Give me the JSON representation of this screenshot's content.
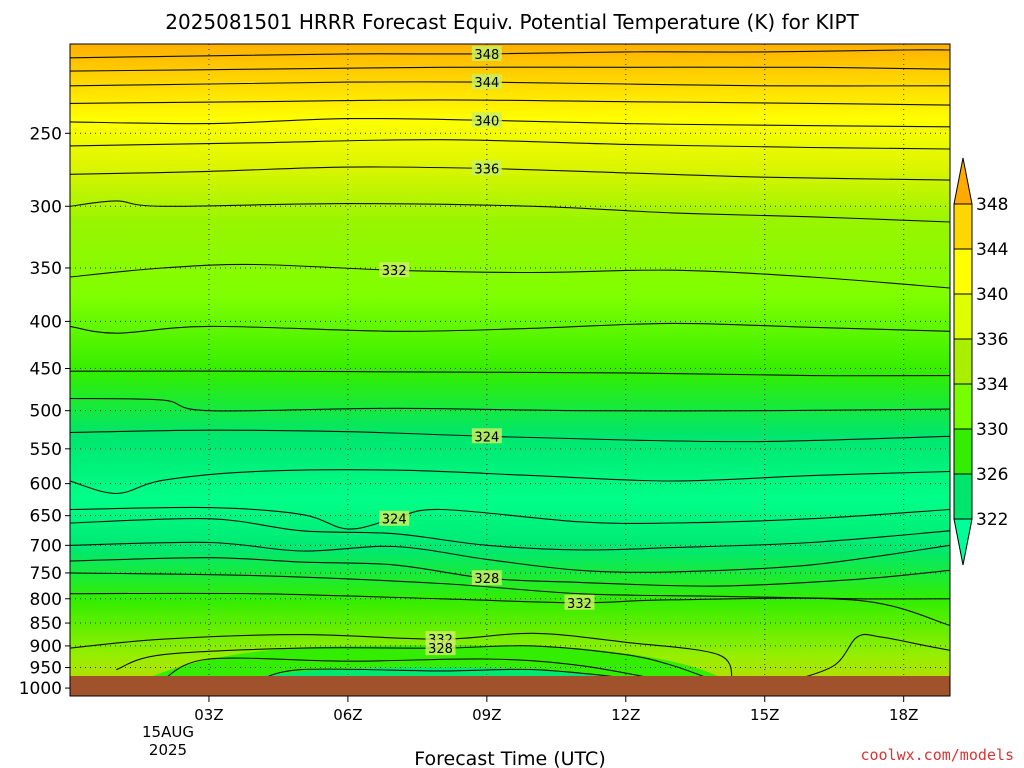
{
  "chart_data": {
    "type": "heatmap",
    "title": "2025081501 HRRR Forecast Equiv. Potential Temperature (K) for KIPT",
    "xlabel": "Forecast Time (UTC)",
    "ylabel": "",
    "x_ticks": [
      "03Z",
      "06Z",
      "09Z",
      "12Z",
      "15Z",
      "18Z"
    ],
    "x_tick_hours": [
      3,
      6,
      9,
      12,
      15,
      18
    ],
    "x_range_hours": [
      0,
      19
    ],
    "date_label": [
      "15AUG",
      "2025"
    ],
    "y_ticks": [
      250,
      300,
      350,
      400,
      450,
      500,
      550,
      600,
      650,
      700,
      750,
      800,
      850,
      900,
      950,
      1000
    ],
    "y_range_hPa": [
      200,
      1020
    ],
    "y_scale": "log",
    "grid": "dotted",
    "colorbar": {
      "levels": [
        322,
        326,
        330,
        334,
        336,
        340,
        344,
        348
      ],
      "colors": [
        "#00ff99",
        "#00e56b",
        "#33ee00",
        "#77ff00",
        "#aaee00",
        "#ddff00",
        "#ffff00",
        "#ffd700",
        "#ffaa00"
      ],
      "extend": "both"
    },
    "contours": [
      {
        "label": "348",
        "points": [
          [
            0,
            207
          ],
          [
            3,
            206
          ],
          [
            6,
            205
          ],
          [
            9,
            205
          ],
          [
            12,
            204
          ],
          [
            15,
            204
          ],
          [
            18,
            203
          ],
          [
            19,
            203
          ]
        ]
      },
      {
        "label": "",
        "points": [
          [
            0,
            214
          ],
          [
            4,
            213
          ],
          [
            8,
            212
          ],
          [
            12,
            212
          ],
          [
            16,
            212
          ],
          [
            19,
            213
          ]
        ]
      },
      {
        "label": "344",
        "points": [
          [
            0,
            222
          ],
          [
            3,
            221
          ],
          [
            6,
            220
          ],
          [
            9,
            220
          ],
          [
            12,
            221
          ],
          [
            15,
            222
          ],
          [
            19,
            222
          ]
        ]
      },
      {
        "label": "",
        "points": [
          [
            0,
            232
          ],
          [
            4,
            231
          ],
          [
            8,
            230
          ],
          [
            12,
            231
          ],
          [
            16,
            232
          ],
          [
            19,
            233
          ]
        ]
      },
      {
        "label": "340",
        "points": [
          [
            0,
            243
          ],
          [
            3,
            244
          ],
          [
            6,
            241
          ],
          [
            9,
            242
          ],
          [
            12,
            244
          ],
          [
            15,
            245
          ],
          [
            19,
            246
          ]
        ]
      },
      {
        "label": "",
        "points": [
          [
            0,
            258
          ],
          [
            4,
            256
          ],
          [
            8,
            254
          ],
          [
            12,
            257
          ],
          [
            16,
            259
          ],
          [
            19,
            260
          ]
        ]
      },
      {
        "label": "336",
        "points": [
          [
            0,
            277
          ],
          [
            3,
            275
          ],
          [
            6,
            272
          ],
          [
            9,
            273
          ],
          [
            12,
            276
          ],
          [
            15,
            279
          ],
          [
            19,
            281
          ]
        ]
      },
      {
        "label": "",
        "points": [
          [
            0,
            300
          ],
          [
            1,
            296
          ],
          [
            2,
            300
          ],
          [
            6,
            298
          ],
          [
            10,
            300
          ],
          [
            13,
            305
          ],
          [
            16,
            308
          ],
          [
            19,
            312
          ]
        ]
      },
      {
        "label": "332",
        "points": [
          [
            0,
            358
          ],
          [
            2,
            350
          ],
          [
            4,
            347
          ],
          [
            7,
            352
          ],
          [
            10,
            354
          ],
          [
            13,
            352
          ],
          [
            16,
            358
          ],
          [
            19,
            368
          ]
        ]
      },
      {
        "label": "",
        "points": [
          [
            0,
            405
          ],
          [
            1,
            412
          ],
          [
            3,
            405
          ],
          [
            7,
            410
          ],
          [
            10,
            407
          ],
          [
            13,
            402
          ],
          [
            16,
            406
          ],
          [
            19,
            410
          ]
        ]
      },
      {
        "label": "",
        "points": [
          [
            0,
            453
          ],
          [
            4,
            453
          ],
          [
            8,
            454
          ],
          [
            12,
            455
          ],
          [
            16,
            458
          ],
          [
            19,
            458
          ]
        ]
      },
      {
        "label": "",
        "points": [
          [
            0,
            485
          ],
          [
            2,
            487
          ],
          [
            3,
            500
          ],
          [
            7,
            497
          ],
          [
            11,
            500
          ],
          [
            15,
            500
          ],
          [
            19,
            498
          ]
        ]
      },
      {
        "label": "324",
        "points": [
          [
            0,
            528
          ],
          [
            3,
            525
          ],
          [
            6,
            527
          ],
          [
            9,
            533
          ],
          [
            12,
            538
          ],
          [
            15,
            540
          ],
          [
            19,
            533
          ]
        ]
      },
      {
        "label": "",
        "points": [
          [
            0,
            596
          ],
          [
            1,
            615
          ],
          [
            2,
            595
          ],
          [
            4,
            582
          ],
          [
            7,
            580
          ],
          [
            10,
            588
          ],
          [
            13,
            596
          ],
          [
            16,
            588
          ],
          [
            19,
            582
          ]
        ]
      },
      {
        "label": "324",
        "points": [
          [
            0,
            640
          ],
          [
            3,
            637
          ],
          [
            5,
            648
          ],
          [
            6,
            672
          ],
          [
            7,
            655
          ],
          [
            8,
            640
          ],
          [
            11,
            660
          ],
          [
            13,
            662
          ],
          [
            16,
            655
          ],
          [
            19,
            640
          ]
        ]
      },
      {
        "label": "",
        "points": [
          [
            0,
            662
          ],
          [
            3,
            655
          ],
          [
            5,
            675
          ],
          [
            7,
            680
          ],
          [
            9,
            700
          ],
          [
            11,
            708
          ],
          [
            13,
            704
          ],
          [
            16,
            695
          ],
          [
            19,
            675
          ]
        ]
      },
      {
        "label": "",
        "points": [
          [
            0,
            700
          ],
          [
            3,
            695
          ],
          [
            5,
            710
          ],
          [
            7,
            702
          ],
          [
            9,
            725
          ],
          [
            11,
            745
          ],
          [
            13,
            748
          ],
          [
            16,
            735
          ],
          [
            19,
            700
          ]
        ]
      },
      {
        "label": "328",
        "points": [
          [
            0,
            728
          ],
          [
            3,
            722
          ],
          [
            5,
            730
          ],
          [
            7,
            735
          ],
          [
            9,
            760
          ],
          [
            11,
            768
          ],
          [
            14,
            775
          ],
          [
            17,
            762
          ],
          [
            19,
            745
          ]
        ]
      },
      {
        "label": "",
        "points": [
          [
            0,
            750
          ],
          [
            4,
            755
          ],
          [
            8,
            770
          ],
          [
            11,
            790
          ],
          [
            14,
            795
          ],
          [
            17,
            800
          ],
          [
            19,
            800
          ]
        ]
      },
      {
        "label": "332",
        "points": [
          [
            0,
            790
          ],
          [
            4,
            790
          ],
          [
            8,
            800
          ],
          [
            11,
            808
          ],
          [
            13,
            802
          ],
          [
            17,
            803
          ],
          [
            19,
            855
          ]
        ]
      },
      {
        "label": "332",
        "points": [
          [
            0,
            905
          ],
          [
            2,
            885
          ],
          [
            5,
            875
          ],
          [
            8,
            885
          ],
          [
            10,
            872
          ],
          [
            12,
            892
          ],
          [
            14,
            920
          ],
          [
            14.3,
            985
          ]
        ]
      },
      {
        "label": "328",
        "points": [
          [
            1,
            955
          ],
          [
            2,
            920
          ],
          [
            5,
            905
          ],
          [
            8,
            905
          ],
          [
            10,
            900
          ],
          [
            12,
            920
          ],
          [
            13,
            945
          ],
          [
            14,
            985
          ]
        ]
      },
      {
        "label": "",
        "points": [
          [
            2,
            980
          ],
          [
            3,
            930
          ],
          [
            6,
            935
          ],
          [
            9,
            930
          ],
          [
            11,
            945
          ],
          [
            13,
            985
          ]
        ]
      },
      {
        "label": "",
        "points": [
          [
            4,
            985
          ],
          [
            5,
            955
          ],
          [
            8,
            958
          ],
          [
            10,
            955
          ],
          [
            12,
            975
          ],
          [
            12.5,
            985
          ]
        ]
      },
      {
        "label": "",
        "points": [
          [
            15.5,
            985
          ],
          [
            16.5,
            945
          ],
          [
            17,
            880
          ],
          [
            17.5,
            880
          ],
          [
            18.5,
            900
          ],
          [
            19,
            910
          ]
        ]
      }
    ]
  },
  "footer": {
    "credit": "coolwx.com/models"
  }
}
